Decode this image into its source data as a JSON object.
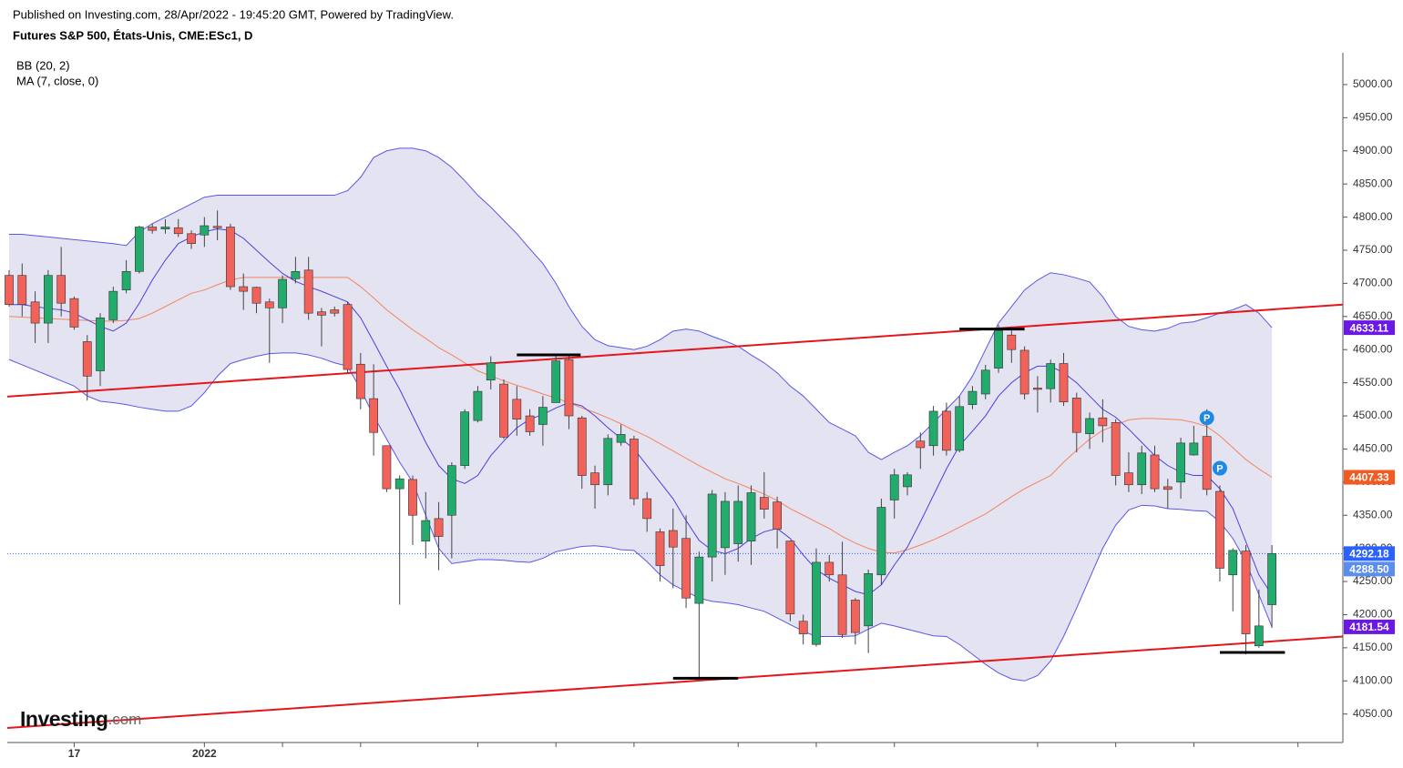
{
  "chart_data": {
    "type": "candlestick",
    "published": "Published on Investing.com, 28/Apr/2022 - 19:45:20 GMT, Powered by TradingView.",
    "title": "Futures S&P 500, États-Unis, CME:ESc1, D",
    "legend": [
      "BB (20, 2)",
      "MA (7, close, 0)"
    ],
    "logo": {
      "name": "Investing",
      "suffix": ".com"
    },
    "categories": [
      null,
      null,
      null,
      null,
      null,
      "17",
      null,
      null,
      null,
      null,
      null,
      null,
      null,
      null,
      null,
      "2022",
      null,
      null,
      null,
      null,
      null,
      null,
      null,
      null,
      null,
      null,
      null,
      null,
      null,
      null,
      null,
      null,
      null,
      null,
      null,
      null,
      null,
      null,
      null,
      null,
      null,
      null,
      null,
      null,
      null,
      null,
      null,
      null,
      null,
      null,
      null,
      null,
      null,
      null,
      null,
      null,
      null,
      null,
      null,
      null,
      null,
      null,
      null,
      null,
      null,
      null,
      null,
      null,
      null,
      null,
      null,
      null,
      null,
      null,
      null,
      null,
      null,
      null,
      null,
      null,
      null,
      null,
      null,
      null,
      null,
      null,
      null,
      null,
      null,
      null,
      null,
      null,
      null,
      null,
      null,
      null,
      null,
      null
    ],
    "open": [
      4712,
      4712,
      4672,
      4640,
      4712,
      4677,
      4612,
      4568,
      4645,
      4690,
      4718,
      4785,
      4782,
      4784,
      4775,
      4773,
      4786,
      4785,
      4695,
      4694,
      4672,
      4663,
      4707,
      4720,
      4657,
      4660,
      4668,
      4578,
      4526,
      4455,
      4390,
      4404,
      4311,
      4345,
      4350,
      4425,
      4493,
      4554,
      4548,
      4525,
      4500,
      4487,
      4520,
      4585,
      4497,
      4414,
      4396,
      4460,
      4465,
      4375,
      4325,
      4327,
      4315,
      4217,
      4287,
      4301,
      4307,
      4311,
      4377,
      4370,
      4311,
      4190,
      4155,
      4279,
      4260,
      4222,
      4183,
      4260,
      4373,
      4393,
      4462,
      4455,
      4507,
      4448,
      4517,
      4533,
      4572,
      4622,
      4599,
      4542,
      4541,
      4579,
      4527,
      4473,
      4497,
      4490,
      4414,
      4396,
      4441,
      4393,
      4400,
      4441,
      4469,
      4386,
      4260,
      4296,
      4153,
      4215
    ],
    "high": [
      4720,
      4730,
      4688,
      4720,
      4755,
      4680,
      4622,
      4655,
      4695,
      4735,
      4787,
      4790,
      4797,
      4797,
      4780,
      4800,
      4810,
      4790,
      4715,
      4695,
      4677,
      4712,
      4740,
      4740,
      4663,
      4665,
      4672,
      4595,
      4578,
      4455,
      4410,
      4410,
      4385,
      4370,
      4430,
      4510,
      4545,
      4590,
      4555,
      4545,
      4510,
      4530,
      4590,
      4590,
      4500,
      4425,
      4472,
      4487,
      4470,
      4385,
      4330,
      4360,
      4350,
      4295,
      4388,
      4385,
      4395,
      4395,
      4415,
      4378,
      4312,
      4200,
      4300,
      4290,
      4310,
      4225,
      4268,
      4375,
      4420,
      4415,
      4475,
      4515,
      4520,
      4530,
      4545,
      4577,
      4637,
      4635,
      4605,
      4560,
      4585,
      4595,
      4535,
      4505,
      4525,
      4495,
      4445,
      4455,
      4455,
      4405,
      4467,
      4485,
      4510,
      4395,
      4300,
      4305,
      4238,
      4305
    ],
    "low": [
      4665,
      4650,
      4610,
      4610,
      4650,
      4630,
      4523,
      4545,
      4640,
      4685,
      4715,
      4775,
      4775,
      4770,
      4752,
      4755,
      4765,
      4690,
      4660,
      4655,
      4580,
      4640,
      4700,
      4645,
      4605,
      4650,
      4565,
      4510,
      4440,
      4385,
      4215,
      4305,
      4285,
      4267,
      4285,
      4420,
      4490,
      4540,
      4465,
      4470,
      4470,
      4455,
      4520,
      4480,
      4390,
      4360,
      4380,
      4455,
      4365,
      4325,
      4250,
      4240,
      4210,
      4105,
      4250,
      4260,
      4280,
      4275,
      4345,
      4300,
      4190,
      4155,
      4152,
      4250,
      4165,
      4155,
      4142,
      4245,
      4345,
      4380,
      4420,
      4440,
      4440,
      4445,
      4510,
      4525,
      4565,
      4580,
      4525,
      4505,
      4520,
      4515,
      4445,
      4450,
      4460,
      4395,
      4385,
      4382,
      4385,
      4360,
      4375,
      4440,
      4380,
      4250,
      4205,
      4140,
      4150,
      4180
    ],
    "close": [
      4668,
      4668,
      4640,
      4712,
      4670,
      4634,
      4560,
      4648,
      4688,
      4718,
      4785,
      4780,
      4785,
      4775,
      4760,
      4787,
      4784,
      4695,
      4688,
      4670,
      4663,
      4706,
      4718,
      4655,
      4652,
      4655,
      4570,
      4526,
      4475,
      4390,
      4405,
      4350,
      4342,
      4318,
      4425,
      4506,
      4537,
      4580,
      4468,
      4495,
      4476,
      4513,
      4583,
      4500,
      4410,
      4396,
      4466,
      4472,
      4375,
      4345,
      4274,
      4302,
      4225,
      4287,
      4382,
      4371,
      4371,
      4384,
      4359,
      4329,
      4201,
      4171,
      4279,
      4260,
      4170,
      4173,
      4262,
      4362,
      4411,
      4411,
      4452,
      4507,
      4448,
      4514,
      4537,
      4569,
      4629,
      4600,
      4533,
      4541,
      4579,
      4521,
      4475,
      4496,
      4485,
      4410,
      4396,
      4444,
      4390,
      4389,
      4459,
      4459,
      4389,
      4270,
      4297,
      4171,
      4183,
      4292.18
    ],
    "bb_upper": [
      4774,
      4774,
      4772,
      4770,
      4768,
      4766,
      4764,
      4762,
      4760,
      4757,
      4778,
      4790,
      4800,
      4810,
      4820,
      4830,
      4833,
      4833,
      4833,
      4833,
      4833,
      4833,
      4833,
      4833,
      4833,
      4833,
      4840,
      4860,
      4890,
      4900,
      4904,
      4904,
      4900,
      4890,
      4875,
      4855,
      4833,
      4815,
      4795,
      4775,
      4752,
      4730,
      4700,
      4665,
      4635,
      4615,
      4606,
      4603,
      4600,
      4605,
      4615,
      4628,
      4631,
      4628,
      4620,
      4613,
      4605,
      4592,
      4580,
      4565,
      4545,
      4530,
      4510,
      4490,
      4480,
      4470,
      4445,
      4434,
      4445,
      4455,
      4470,
      4490,
      4510,
      4530,
      4560,
      4600,
      4640,
      4665,
      4690,
      4705,
      4716,
      4713,
      4708,
      4702,
      4680,
      4650,
      4635,
      4630,
      4628,
      4632,
      4640,
      4642,
      4648,
      4655,
      4660,
      4668,
      4655,
      4633.11
    ],
    "bb_basis": [
      4650,
      4649,
      4648,
      4647,
      4646,
      4645,
      4644,
      4643,
      4643,
      4644,
      4647,
      4655,
      4665,
      4675,
      4685,
      4690,
      4698,
      4705,
      4709,
      4709,
      4709,
      4709,
      4709,
      4709,
      4709,
      4709,
      4709,
      4695,
      4678,
      4660,
      4645,
      4630,
      4617,
      4603,
      4592,
      4580,
      4568,
      4560,
      4553,
      4546,
      4540,
      4533,
      4527,
      4520,
      4512,
      4505,
      4497,
      4488,
      4478,
      4469,
      4458,
      4447,
      4436,
      4425,
      4415,
      4405,
      4398,
      4390,
      4382,
      4372,
      4360,
      4350,
      4340,
      4330,
      4318,
      4308,
      4300,
      4294,
      4293,
      4298,
      4305,
      4313,
      4322,
      4332,
      4342,
      4352,
      4365,
      4378,
      4390,
      4400,
      4410,
      4430,
      4448,
      4465,
      4478,
      4486,
      4494,
      4496,
      4496,
      4495,
      4494,
      4490,
      4484,
      4470,
      4452,
      4434,
      4420,
      4407.33
    ],
    "bb_lower": [
      4585,
      4577,
      4569,
      4561,
      4553,
      4545,
      4530,
      4522,
      4520,
      4517,
      4513,
      4510,
      4507,
      4507,
      4515,
      4535,
      4560,
      4579,
      4585,
      4590,
      4594,
      4595,
      4595,
      4592,
      4587,
      4580,
      4575,
      4540,
      4500,
      4465,
      4430,
      4400,
      4350,
      4300,
      4277,
      4280,
      4283,
      4283,
      4282,
      4280,
      4279,
      4285,
      4295,
      4299,
      4303,
      4304,
      4302,
      4298,
      4297,
      4280,
      4260,
      4245,
      4235,
      4225,
      4220,
      4218,
      4215,
      4210,
      4205,
      4195,
      4185,
      4175,
      4167,
      4167,
      4167,
      4168,
      4178,
      4187,
      4183,
      4178,
      4173,
      4168,
      4167,
      4155,
      4140,
      4125,
      4112,
      4103,
      4100,
      4108,
      4130,
      4167,
      4210,
      4255,
      4300,
      4335,
      4358,
      4365,
      4364,
      4360,
      4359,
      4357,
      4356,
      4340,
      4315,
      4280,
      4230,
      4181.54
    ],
    "ma7": [
      4668,
      4668,
      4665,
      4662,
      4660,
      4655,
      4645,
      4635,
      4628,
      4640,
      4670,
      4705,
      4735,
      4760,
      4770,
      4778,
      4782,
      4780,
      4768,
      4750,
      4732,
      4715,
      4703,
      4695,
      4688,
      4680,
      4672,
      4648,
      4612,
      4575,
      4540,
      4500,
      4460,
      4425,
      4405,
      4398,
      4410,
      4440,
      4462,
      4482,
      4495,
      4502,
      4512,
      4520,
      4515,
      4500,
      4482,
      4466,
      4450,
      4425,
      4400,
      4375,
      4342,
      4312,
      4297,
      4292,
      4300,
      4315,
      4325,
      4330,
      4315,
      4290,
      4268,
      4255,
      4245,
      4235,
      4230,
      4245,
      4275,
      4302,
      4340,
      4380,
      4420,
      4455,
      4477,
      4500,
      4530,
      4550,
      4565,
      4575,
      4575,
      4565,
      4550,
      4530,
      4510,
      4498,
      4480,
      4460,
      4440,
      4425,
      4415,
      4410,
      4410,
      4390,
      4360,
      4310,
      4260,
      4230
    ],
    "up_color": "#22ab6c",
    "down_color": "#f0625a",
    "wick_color": "#444444",
    "band_color": "#5b57e6",
    "band_fill": "#e4e3f1",
    "basis_color": "#f4845f",
    "ma_color": "#4a3fe0",
    "trendlines": [
      {
        "x": [
          -0.14,
          102.45
        ],
        "y": [
          4529,
          4668
        ],
        "color": "#e4161b"
      },
      {
        "x": [
          -0.14,
          102.45
        ],
        "y": [
          4029,
          4167
        ],
        "color": "#e4161b"
      }
    ],
    "levels": [
      {
        "x": [
          39,
          43.9
        ],
        "y": 4592
      },
      {
        "x": [
          51,
          56
        ],
        "y": 4104
      },
      {
        "x": [
          73,
          78
        ],
        "y": 4631
      },
      {
        "x": [
          93,
          98
        ],
        "y": 4143
      }
    ],
    "markers": [
      {
        "x": 92,
        "y": 4497,
        "label": "P"
      },
      {
        "x": 93,
        "y": 4421,
        "label": "P"
      }
    ],
    "marker_color": "#1e88e5",
    "price_labels": [
      {
        "value": 4633.11,
        "color": "#6b17e6"
      },
      {
        "value": 4407.33,
        "color": "#f15a22"
      },
      {
        "value": 4292.18,
        "color": "#2962ff"
      },
      {
        "value": 4288.5,
        "label": "4288.50",
        "color": "#5b8def"
      },
      {
        "value": 4181.54,
        "color": "#6b17e6"
      }
    ],
    "last_line_color": "#2962ff",
    "xlim": [
      -0.14,
      102.45
    ],
    "xticks": [
      5,
      15,
      21,
      27,
      36,
      42,
      48,
      56,
      62,
      68,
      79,
      85,
      91,
      99
    ],
    "ylim": [
      4007,
      5048
    ],
    "yticks": [
      {
        "value": 4050,
        "label": "4050.00"
      },
      {
        "value": 4100,
        "label": "4100.00"
      },
      {
        "value": 4150,
        "label": "4150.00"
      },
      {
        "value": 4200,
        "label": "4200.00"
      },
      {
        "value": 4250,
        "label": "4250.00"
      },
      {
        "value": 4300,
        "label": "4300.00"
      },
      {
        "value": 4350,
        "label": "4350.00"
      },
      {
        "value": 4400,
        "label": "4400.00"
      },
      {
        "value": 4450,
        "label": "4450.00"
      },
      {
        "value": 4500,
        "label": "4500.00"
      },
      {
        "value": 4550,
        "label": "4550.00"
      },
      {
        "value": 4600,
        "label": "4600.00"
      },
      {
        "value": 4650,
        "label": "4650.00"
      },
      {
        "value": 4700,
        "label": "4700.00"
      },
      {
        "value": 4750,
        "label": "4750.00"
      },
      {
        "value": 4800,
        "label": "4800.00"
      },
      {
        "value": 4850,
        "label": "4850.00"
      },
      {
        "value": 4900,
        "label": "4900.00"
      },
      {
        "value": 4950,
        "label": "4950.00"
      },
      {
        "value": 5000,
        "label": "5000.00"
      }
    ]
  }
}
